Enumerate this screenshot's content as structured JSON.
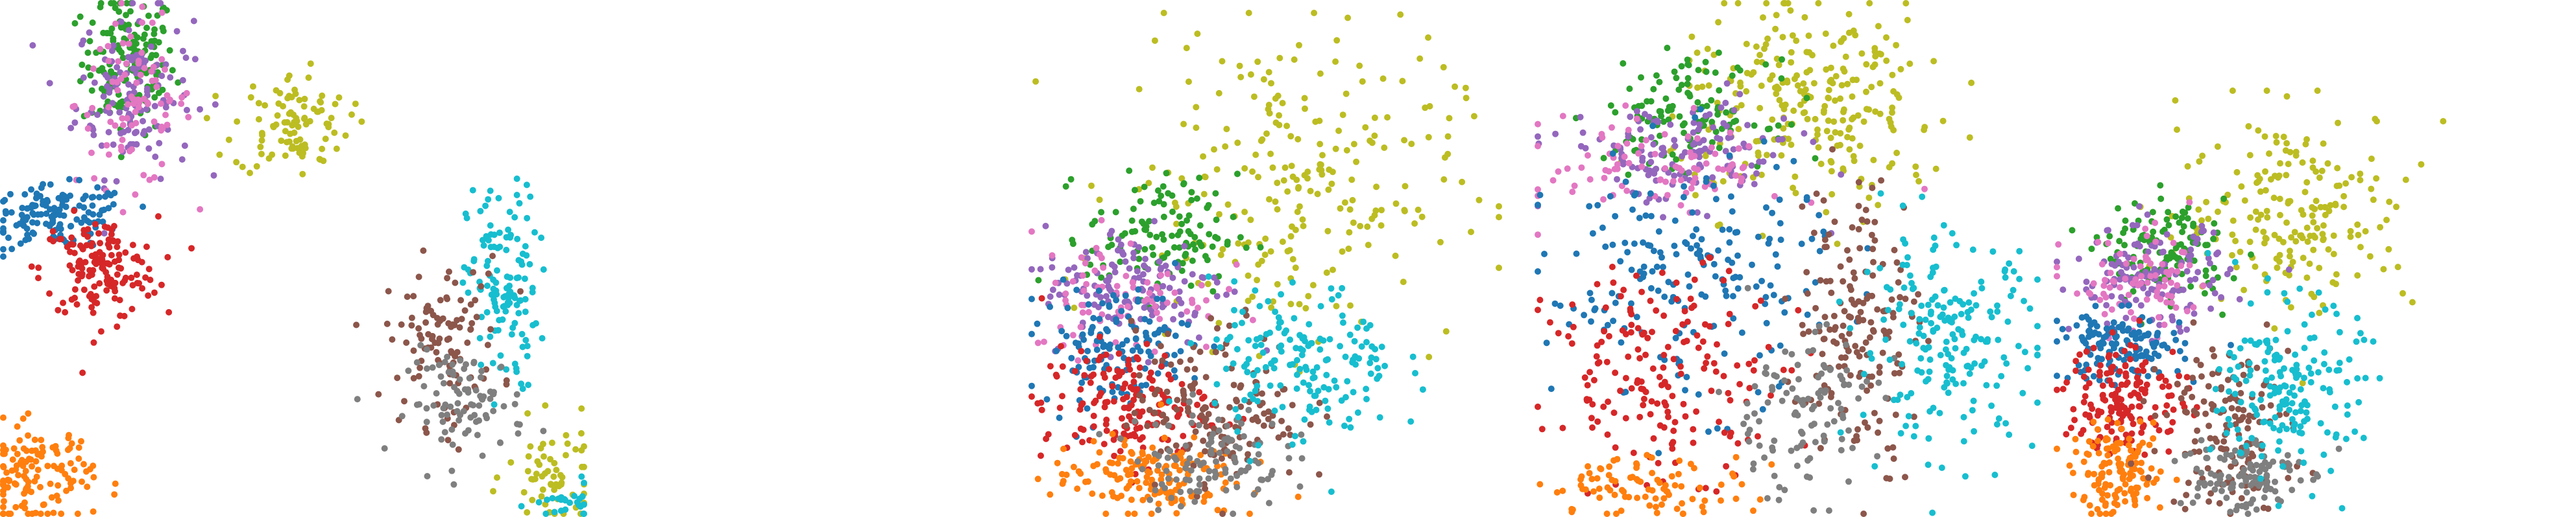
{
  "colors": {
    "c0": "#1f77b4",
    "c1": "#ff7f0e",
    "c2": "#2ca02c",
    "c3": "#d62728",
    "c4": "#9467bd",
    "c5": "#8c564b",
    "c6": "#e377c2",
    "c7": "#7f7f7f",
    "c8": "#bcbd22",
    "c9": "#17becf"
  },
  "chart_data": [
    {
      "type": "scatter",
      "title": "",
      "xlabel": "",
      "ylabel": "",
      "axes_visible": false,
      "legend": false,
      "grid": false,
      "xlim": [
        0,
        100
      ],
      "ylim": [
        0,
        100
      ],
      "clusters": [
        {
          "color": "c2",
          "cx": 22,
          "cy": 88,
          "sx": 4,
          "sy": 7,
          "n": 150
        },
        {
          "color": "c4",
          "cx": 23,
          "cy": 82,
          "sx": 5,
          "sy": 8,
          "n": 130
        },
        {
          "color": "c6",
          "cx": 23,
          "cy": 80,
          "sx": 5,
          "sy": 8,
          "n": 90
        },
        {
          "color": "c0",
          "cx": 10,
          "cy": 58,
          "sx": 6,
          "sy": 3,
          "n": 140
        },
        {
          "color": "c3",
          "cx": 17,
          "cy": 48,
          "sx": 5,
          "sy": 5,
          "n": 150
        },
        {
          "color": "c8",
          "cx": 50,
          "cy": 76,
          "sx": 5,
          "sy": 5,
          "n": 100
        },
        {
          "color": "c9",
          "cx": 86,
          "cy": 44,
          "sx": 3,
          "sy": 10,
          "n": 130
        },
        {
          "color": "c5",
          "cx": 76,
          "cy": 34,
          "sx": 5,
          "sy": 8,
          "n": 110
        },
        {
          "color": "c7",
          "cx": 80,
          "cy": 22,
          "sx": 5,
          "sy": 5,
          "n": 90
        },
        {
          "color": "c1",
          "cx": 6,
          "cy": 8,
          "sx": 5,
          "sy": 5,
          "n": 130
        },
        {
          "color": "c8",
          "cx": 95,
          "cy": 8,
          "sx": 4,
          "sy": 5,
          "n": 60
        },
        {
          "color": "c9",
          "cx": 97,
          "cy": 2,
          "sx": 3,
          "sy": 2,
          "n": 25
        }
      ]
    },
    {
      "type": "scatter",
      "title": "",
      "xlabel": "",
      "ylabel": "",
      "axes_visible": false,
      "legend": false,
      "grid": false,
      "xlim": [
        0,
        100
      ],
      "ylim": [
        0,
        100
      ],
      "clusters": [
        {
          "color": "c8",
          "cx": 55,
          "cy": 66,
          "sx": 18,
          "sy": 16,
          "n": 240
        },
        {
          "color": "c2",
          "cx": 28,
          "cy": 56,
          "sx": 8,
          "sy": 6,
          "n": 120
        },
        {
          "color": "c4",
          "cx": 22,
          "cy": 46,
          "sx": 10,
          "sy": 6,
          "n": 130
        },
        {
          "color": "c6",
          "cx": 20,
          "cy": 44,
          "sx": 10,
          "sy": 6,
          "n": 80
        },
        {
          "color": "c0",
          "cx": 18,
          "cy": 34,
          "sx": 8,
          "sy": 6,
          "n": 140
        },
        {
          "color": "c3",
          "cx": 20,
          "cy": 22,
          "sx": 9,
          "sy": 6,
          "n": 160
        },
        {
          "color": "c1",
          "cx": 24,
          "cy": 8,
          "sx": 10,
          "sy": 4,
          "n": 150
        },
        {
          "color": "c5",
          "cx": 40,
          "cy": 22,
          "sx": 9,
          "sy": 8,
          "n": 150
        },
        {
          "color": "c7",
          "cx": 38,
          "cy": 12,
          "sx": 8,
          "sy": 5,
          "n": 110
        },
        {
          "color": "c9",
          "cx": 58,
          "cy": 30,
          "sx": 10,
          "sy": 8,
          "n": 170
        }
      ]
    },
    {
      "type": "scatter",
      "title": "",
      "xlabel": "",
      "ylabel": "",
      "axes_visible": false,
      "legend": false,
      "grid": false,
      "xlim": [
        0,
        100
      ],
      "ylim": [
        0,
        100
      ],
      "clusters": [
        {
          "color": "c8",
          "cx": 55,
          "cy": 80,
          "sx": 14,
          "sy": 10,
          "n": 260
        },
        {
          "color": "c2",
          "cx": 30,
          "cy": 78,
          "sx": 8,
          "sy": 5,
          "n": 120
        },
        {
          "color": "c4",
          "cx": 28,
          "cy": 70,
          "sx": 12,
          "sy": 5,
          "n": 140
        },
        {
          "color": "c6",
          "cx": 26,
          "cy": 68,
          "sx": 12,
          "sy": 5,
          "n": 90
        },
        {
          "color": "c0",
          "cx": 30,
          "cy": 46,
          "sx": 14,
          "sy": 12,
          "n": 200
        },
        {
          "color": "c3",
          "cx": 26,
          "cy": 28,
          "sx": 12,
          "sy": 10,
          "n": 180
        },
        {
          "color": "c1",
          "cx": 22,
          "cy": 6,
          "sx": 10,
          "sy": 3,
          "n": 90
        },
        {
          "color": "c5",
          "cx": 64,
          "cy": 38,
          "sx": 6,
          "sy": 14,
          "n": 170
        },
        {
          "color": "c7",
          "cx": 52,
          "cy": 20,
          "sx": 8,
          "sy": 8,
          "n": 110
        },
        {
          "color": "c9",
          "cx": 82,
          "cy": 34,
          "sx": 9,
          "sy": 10,
          "n": 200
        }
      ]
    },
    {
      "type": "scatter",
      "title": "",
      "xlabel": "",
      "ylabel": "",
      "axes_visible": false,
      "legend": false,
      "grid": false,
      "xlim": [
        0,
        100
      ],
      "ylim": [
        0,
        100
      ],
      "clusters": [
        {
          "color": "c8",
          "cx": 62,
          "cy": 72,
          "sx": 15,
          "sy": 12,
          "n": 200
        },
        {
          "color": "c2",
          "cx": 28,
          "cy": 62,
          "sx": 8,
          "sy": 6,
          "n": 120
        },
        {
          "color": "c4",
          "cx": 24,
          "cy": 56,
          "sx": 10,
          "sy": 6,
          "n": 130
        },
        {
          "color": "c6",
          "cx": 22,
          "cy": 54,
          "sx": 10,
          "sy": 6,
          "n": 80
        },
        {
          "color": "c0",
          "cx": 16,
          "cy": 40,
          "sx": 8,
          "sy": 4,
          "n": 140
        },
        {
          "color": "c3",
          "cx": 18,
          "cy": 28,
          "sx": 8,
          "sy": 7,
          "n": 160
        },
        {
          "color": "c1",
          "cx": 16,
          "cy": 10,
          "sx": 6,
          "sy": 5,
          "n": 130
        },
        {
          "color": "c5",
          "cx": 44,
          "cy": 22,
          "sx": 8,
          "sy": 10,
          "n": 150
        },
        {
          "color": "c7",
          "cx": 46,
          "cy": 10,
          "sx": 8,
          "sy": 5,
          "n": 110
        },
        {
          "color": "c9",
          "cx": 60,
          "cy": 30,
          "sx": 9,
          "sy": 10,
          "n": 180
        }
      ]
    }
  ]
}
